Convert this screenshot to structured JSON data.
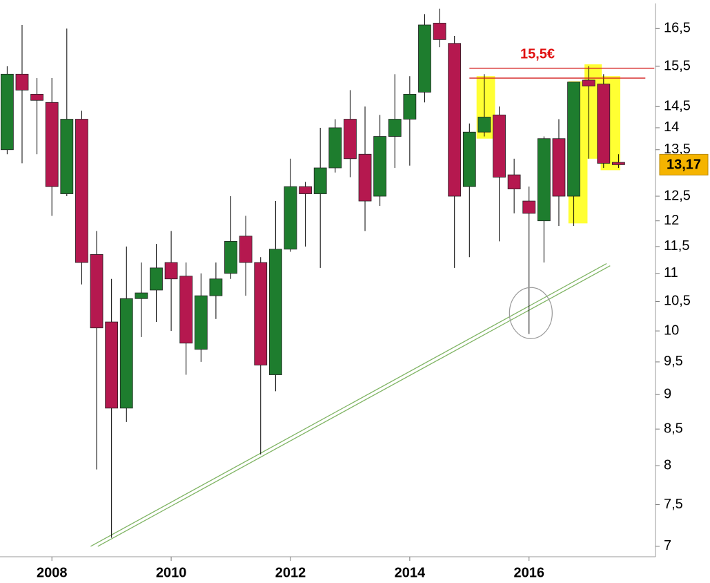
{
  "chart_data": {
    "type": "candlestick",
    "x": [
      2007.25,
      2007.5,
      2007.75,
      2008,
      2008.25,
      2008.5,
      2008.75,
      2009,
      2009.25,
      2009.5,
      2009.75,
      2010,
      2010.25,
      2010.5,
      2010.75,
      2011,
      2011.25,
      2011.5,
      2011.75,
      2012,
      2012.25,
      2012.5,
      2012.75,
      2013,
      2013.25,
      2013.5,
      2013.75,
      2014,
      2014.25,
      2014.5,
      2014.75,
      2015,
      2015.25,
      2015.5,
      2015.75,
      2016,
      2016.25,
      2016.5,
      2016.75,
      2017,
      2017.25,
      2017.5
    ],
    "open": [
      13.5,
      15.3,
      14.8,
      14.6,
      12.55,
      14.2,
      11.35,
      10.15,
      8.8,
      10.55,
      10.7,
      11.2,
      10.95,
      9.7,
      10.6,
      11.0,
      11.7,
      11.2,
      9.3,
      11.45,
      12.7,
      12.55,
      13.1,
      14.2,
      13.4,
      12.5,
      13.8,
      14.2,
      14.85,
      16.65,
      16.1,
      12.7,
      13.9,
      14.3,
      12.95,
      12.4,
      12.0,
      13.75,
      12.5,
      15.15,
      15.05,
      13.22
    ],
    "high": [
      15.5,
      16.6,
      15.2,
      15.2,
      16.5,
      14.4,
      11.8,
      10.9,
      11.5,
      11.2,
      11.55,
      11.8,
      11.2,
      11.0,
      11.2,
      12.5,
      12.1,
      11.3,
      12.4,
      13.3,
      12.8,
      14.0,
      14.2,
      14.9,
      14.5,
      14.3,
      15.3,
      15.25,
      16.9,
      17.05,
      16.3,
      14.1,
      15.3,
      14.5,
      13.3,
      12.7,
      13.8,
      14.2,
      15.1,
      15.5,
      15.3,
      13.4
    ],
    "low": [
      13.4,
      13.2,
      13.4,
      12.1,
      12.5,
      10.8,
      7.95,
      7.1,
      8.6,
      9.9,
      10.15,
      10.0,
      9.3,
      9.5,
      10.2,
      10.9,
      10.6,
      8.15,
      9.05,
      11.4,
      11.5,
      11.1,
      13.0,
      12.9,
      11.8,
      12.3,
      13.1,
      13.15,
      14.6,
      16.0,
      11.1,
      11.3,
      13.8,
      11.6,
      12.15,
      9.95,
      11.2,
      11.9,
      11.9,
      13.3,
      13.1,
      13.1
    ],
    "close": [
      15.3,
      14.9,
      14.65,
      12.7,
      14.2,
      11.2,
      10.05,
      8.8,
      10.55,
      10.65,
      11.1,
      10.9,
      9.8,
      10.6,
      10.9,
      11.6,
      11.2,
      9.45,
      11.45,
      12.7,
      12.55,
      13.1,
      14.0,
      13.3,
      12.4,
      13.8,
      14.2,
      14.8,
      16.6,
      16.2,
      12.5,
      13.9,
      14.25,
      12.9,
      12.65,
      12.15,
      13.75,
      12.5,
      15.1,
      15.0,
      13.2,
      13.17
    ],
    "up_color": "#1e7d2e",
    "down_color": "#b5184f",
    "xlim": [
      2007.13,
      2018.12
    ],
    "xticks": [
      2008,
      2010,
      2012,
      2014,
      2016
    ],
    "ylim": [
      6.88,
      17.2
    ],
    "log_scale": true,
    "yticks": [
      {
        "value": 7,
        "label": "7"
      },
      {
        "value": 7.5,
        "label": "7,5"
      },
      {
        "value": 8,
        "label": "8"
      },
      {
        "value": 8.5,
        "label": "8,5"
      },
      {
        "value": 9,
        "label": "9"
      },
      {
        "value": 9.5,
        "label": "9,5"
      },
      {
        "value": 10,
        "label": "10"
      },
      {
        "value": 10.5,
        "label": "10,5"
      },
      {
        "value": 11,
        "label": "11"
      },
      {
        "value": 11.5,
        "label": "11,5"
      },
      {
        "value": 12,
        "label": "12"
      },
      {
        "value": 12.5,
        "label": "12,5"
      },
      {
        "value": 13.5,
        "label": "13,5"
      },
      {
        "value": 14,
        "label": "14"
      },
      {
        "value": 14.5,
        "label": "14,5"
      },
      {
        "value": 15.5,
        "label": "15,5"
      },
      {
        "value": 16.5,
        "label": "16,5"
      }
    ],
    "last_price": {
      "value": 13.17,
      "label": "13,17"
    },
    "annotation": "15,5€",
    "resistance_lines": [
      {
        "value": 15.45,
        "x": [
          2015.0,
          2018.1
        ]
      },
      {
        "value": 15.2,
        "x": [
          2015.0,
          2017.95
        ]
      }
    ],
    "trend_lines": [
      {
        "x": [
          2008.65,
          2017.3
        ],
        "y": [
          7.0,
          11.18
        ]
      },
      {
        "x": [
          2008.77,
          2017.36
        ],
        "y": [
          7.0,
          11.14
        ]
      }
    ],
    "highlights": [
      {
        "x": [
          2015.12,
          2015.43
        ],
        "y": [
          13.75,
          15.25
        ]
      },
      {
        "x": [
          2016.66,
          2016.98
        ],
        "y": [
          11.95,
          15.12
        ]
      },
      {
        "x": [
          2016.93,
          2017.22
        ],
        "y": [
          13.3,
          15.55
        ]
      },
      {
        "x": [
          2017.2,
          2017.53
        ],
        "y": [
          13.05,
          15.25
        ]
      }
    ],
    "circle": {
      "x": 2016.03,
      "y": 10.3
    }
  }
}
